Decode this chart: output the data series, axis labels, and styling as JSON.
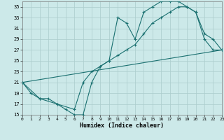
{
  "background_color": "#cce9e9",
  "grid_color": "#aacccc",
  "line_color": "#1a7070",
  "xlim": [
    0,
    23
  ],
  "ylim": [
    15,
    36
  ],
  "xticks": [
    0,
    1,
    2,
    3,
    4,
    5,
    6,
    7,
    8,
    9,
    10,
    11,
    12,
    13,
    14,
    15,
    16,
    17,
    18,
    19,
    20,
    21,
    22,
    23
  ],
  "yticks": [
    15,
    17,
    19,
    21,
    23,
    25,
    27,
    29,
    31,
    33,
    35
  ],
  "xlabel": "Humidex (Indice chaleur)",
  "curve1_x": [
    0,
    1,
    2,
    3,
    4,
    5,
    6,
    7,
    8,
    9,
    10,
    11,
    12,
    13,
    14,
    15,
    16,
    17,
    18,
    19,
    20,
    21,
    22,
    23
  ],
  "curve1_y": [
    21,
    19,
    18,
    18,
    17,
    16,
    15,
    15,
    21,
    24,
    25,
    33,
    32,
    29,
    34,
    35,
    36,
    36,
    36,
    35,
    34,
    29,
    27,
    27
  ],
  "curve2_x": [
    0,
    2,
    4,
    6,
    7,
    8,
    9,
    10,
    11,
    12,
    13,
    14,
    15,
    16,
    17,
    18,
    19,
    20,
    21,
    22,
    23
  ],
  "curve2_y": [
    21,
    18,
    17,
    16,
    21,
    23,
    24,
    25,
    26,
    27,
    28,
    30,
    32,
    33,
    34,
    35,
    35,
    34,
    30,
    29,
    27
  ],
  "curve3_x": [
    0,
    23
  ],
  "curve3_y": [
    21,
    27
  ]
}
